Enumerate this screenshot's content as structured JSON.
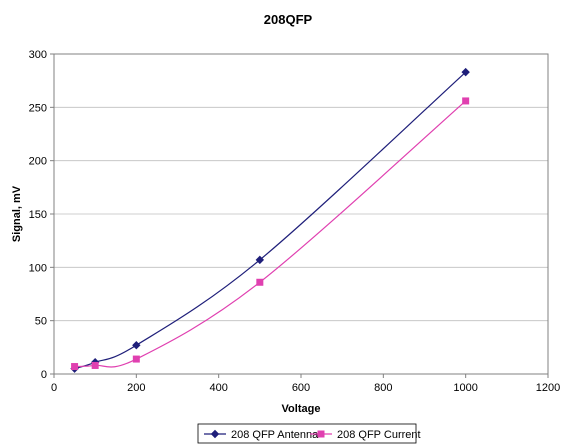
{
  "chart_data": {
    "type": "line",
    "title": "208QFP",
    "xlabel": "Voltage",
    "ylabel": "Signal, mV",
    "xlim": [
      0,
      1200
    ],
    "ylim": [
      0,
      300
    ],
    "xticks": [
      "0",
      "200",
      "400",
      "600",
      "800",
      "1000",
      "1200"
    ],
    "yticks": [
      "0",
      "50",
      "100",
      "150",
      "200",
      "250",
      "300"
    ],
    "grid": true,
    "legend_position": "bottom",
    "series": [
      {
        "name": "208 QFP Antenna",
        "color": "#1f1f7a",
        "marker": "diamond",
        "x": [
          50,
          100,
          200,
          500,
          1000
        ],
        "y": [
          5,
          11,
          27,
          107,
          283
        ]
      },
      {
        "name": "208 QFP Current",
        "color": "#e040b0",
        "marker": "square",
        "x": [
          50,
          100,
          200,
          500,
          1000
        ],
        "y": [
          7,
          8,
          14,
          86,
          256
        ]
      }
    ]
  }
}
